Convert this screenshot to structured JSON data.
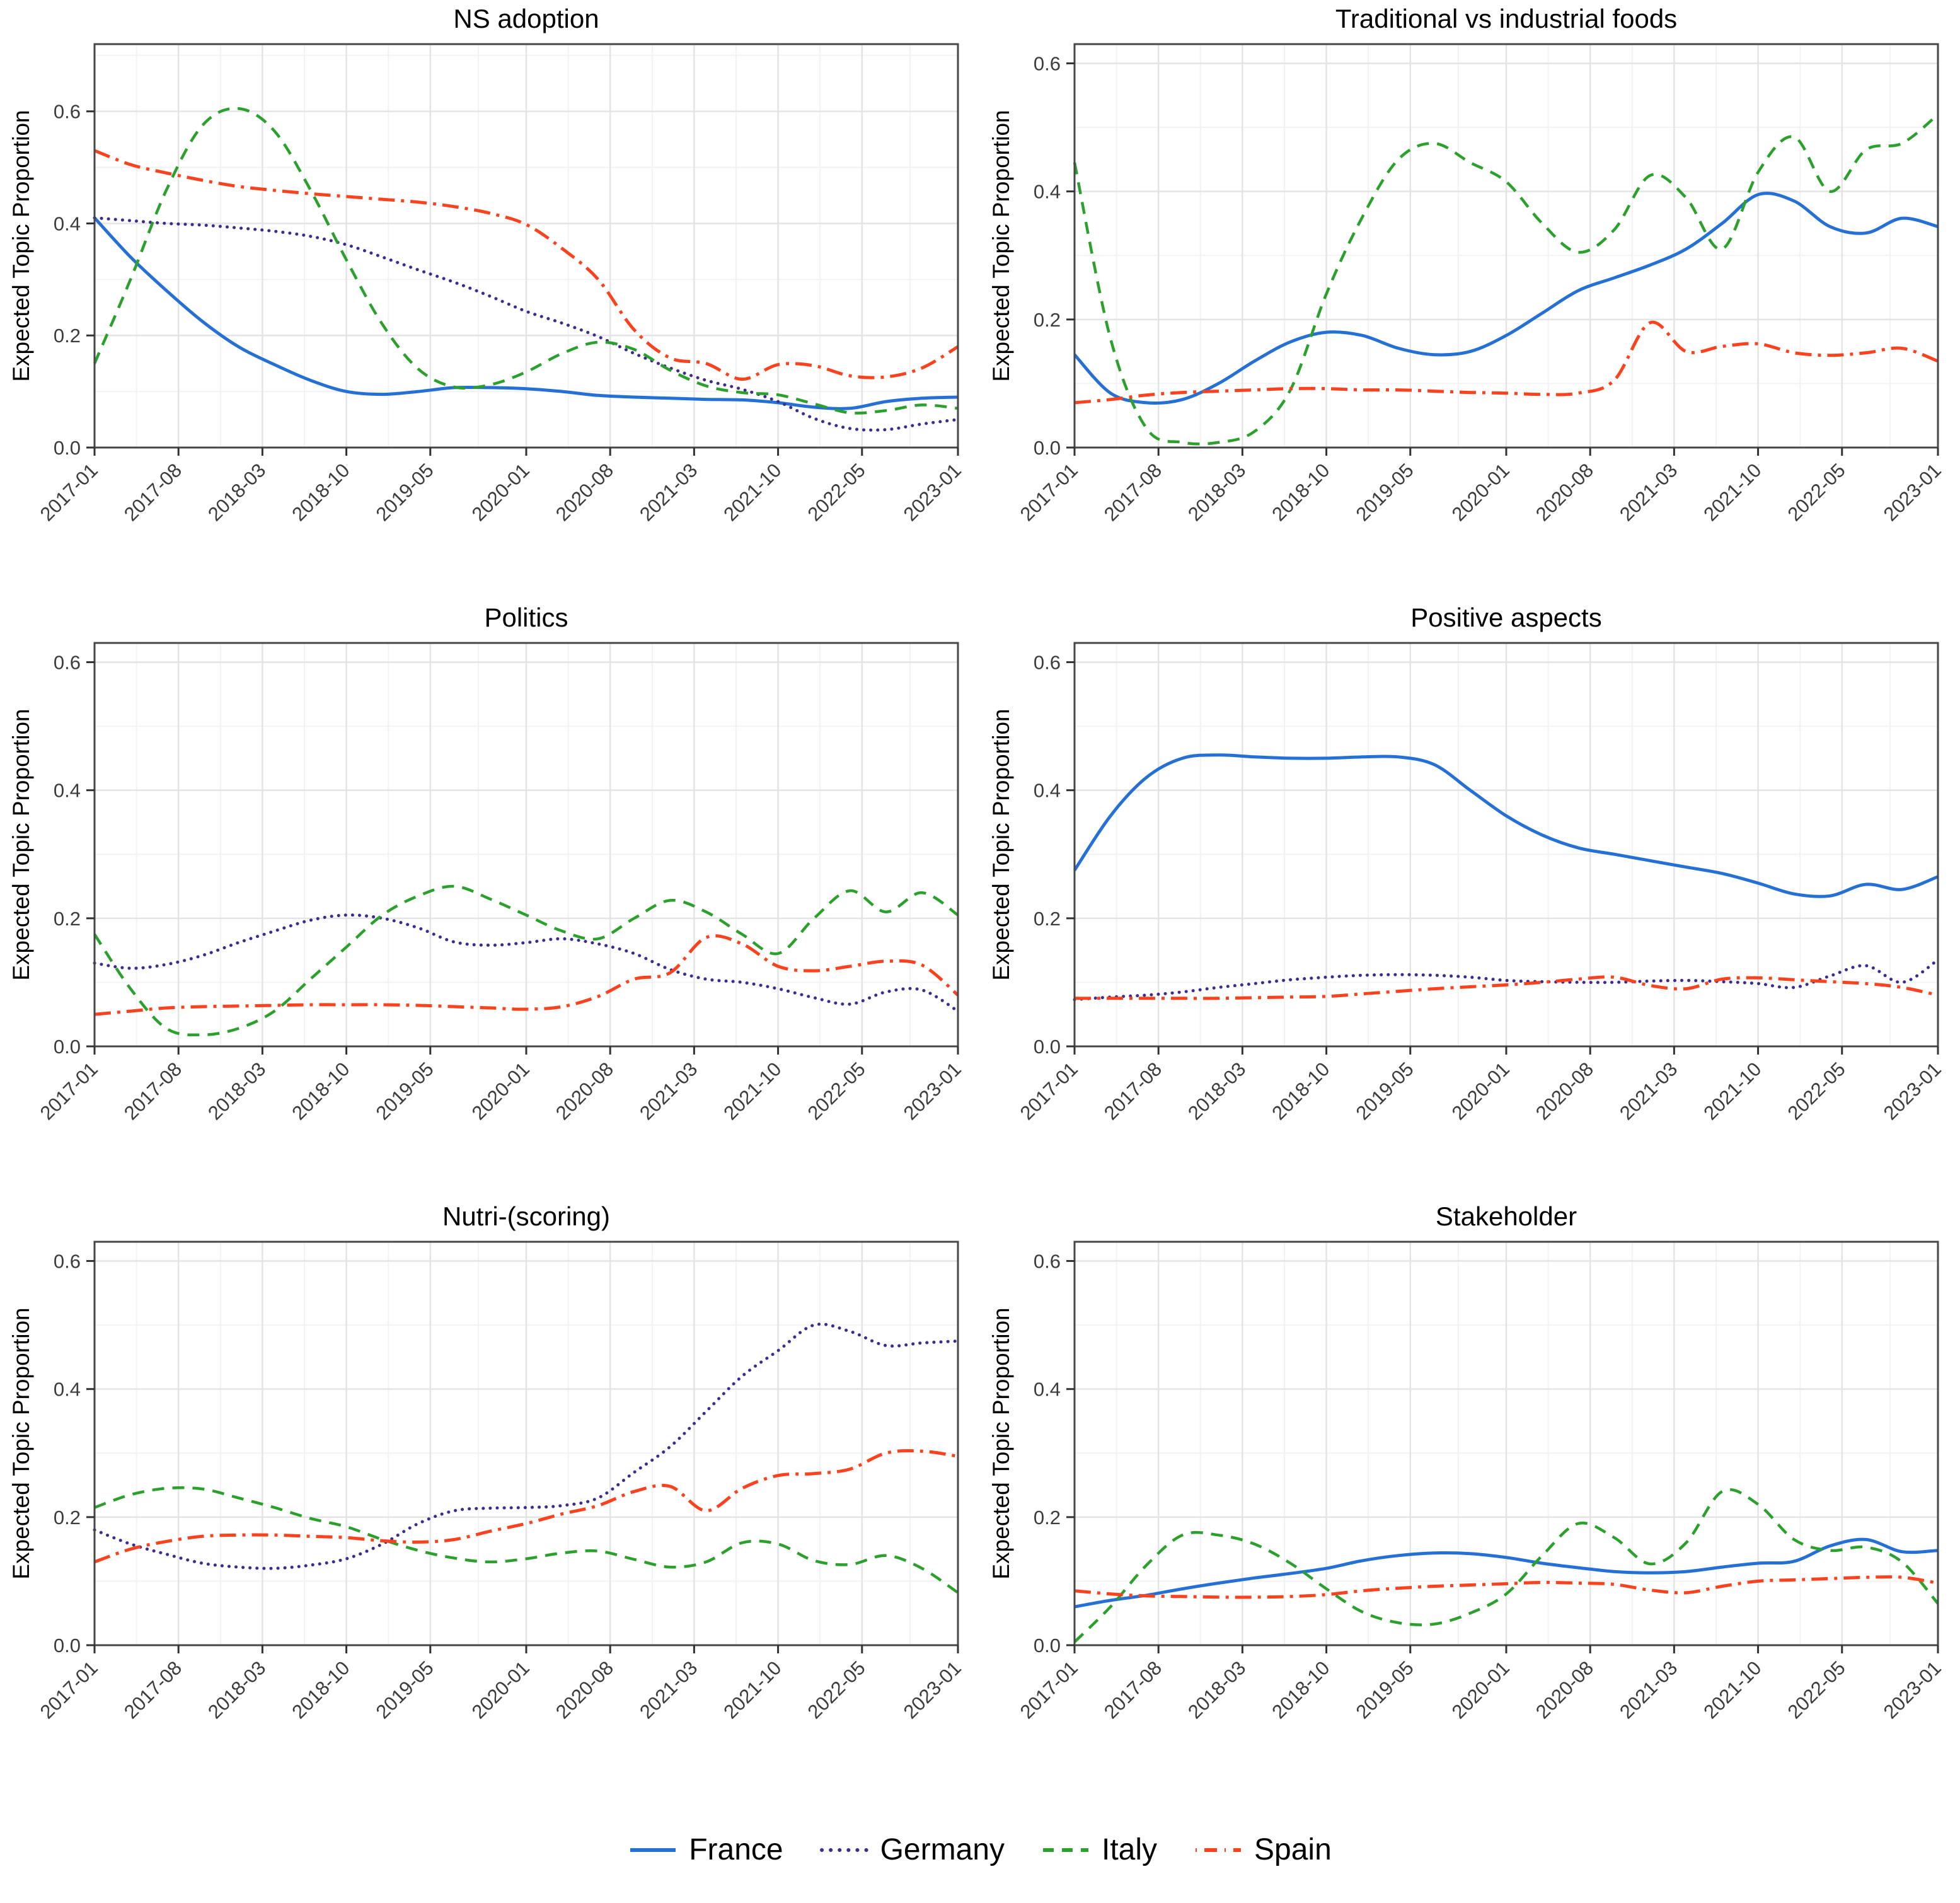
{
  "figure": {
    "ylabel": "Expected Topic Proportion",
    "y_tick_labels": [
      "0.0",
      "0.2",
      "0.4",
      "0.6"
    ]
  },
  "legend": {
    "items": [
      {
        "label": "France",
        "color": "#2570D4",
        "dash": "solid"
      },
      {
        "label": "Germany",
        "color": "#3D2B8F",
        "dash": "dotted"
      },
      {
        "label": "Italy",
        "color": "#2CA02C",
        "dash": "dashed"
      },
      {
        "label": "Spain",
        "color": "#FA431E",
        "dash": "dashdot"
      }
    ]
  },
  "x_tick_labels": [
    "2017-01",
    "2017-08",
    "2018-03",
    "2018-10",
    "2019-05",
    "2020-01",
    "2020-08",
    "2021-03",
    "2021-10",
    "2022-05",
    "2023-01"
  ],
  "x_tick_offsets": [
    0,
    7,
    14,
    21,
    28,
    36,
    43,
    50,
    57,
    64,
    72
  ],
  "x_offsets": [
    0,
    3,
    6,
    9,
    12,
    15,
    18,
    21,
    24,
    27,
    30,
    33,
    36,
    39,
    42,
    45,
    48,
    51,
    54,
    57,
    60,
    63,
    66,
    69,
    72
  ],
  "x_offset_months": [
    "2017-01",
    "2017-04",
    "2017-07",
    "2017-10",
    "2018-01",
    "2018-04",
    "2018-07",
    "2018-10",
    "2019-01",
    "2019-04",
    "2019-07",
    "2019-10",
    "2020-01",
    "2020-04",
    "2020-07",
    "2020-10",
    "2021-01",
    "2021-04",
    "2021-07",
    "2021-10",
    "2022-01",
    "2022-04",
    "2022-07",
    "2022-10",
    "2023-01"
  ],
  "chart_data": [
    {
      "type": "line",
      "title": "NS adoption",
      "xlabel": "",
      "ylabel": "Expected Topic Proportion",
      "ylim": [
        0,
        0.72
      ],
      "yticks": [
        0,
        0.2,
        0.4,
        0.6
      ],
      "grid": true,
      "series": [
        {
          "name": "France",
          "values": [
            0.41,
            0.34,
            0.28,
            0.225,
            0.18,
            0.148,
            0.12,
            0.1,
            0.095,
            0.1,
            0.107,
            0.107,
            0.105,
            0.1,
            0.093,
            0.09,
            0.088,
            0.086,
            0.085,
            0.08,
            0.072,
            0.07,
            0.082,
            0.088,
            0.09
          ]
        },
        {
          "name": "Germany",
          "values": [
            0.41,
            0.405,
            0.4,
            0.397,
            0.392,
            0.386,
            0.377,
            0.362,
            0.34,
            0.317,
            0.295,
            0.27,
            0.243,
            0.222,
            0.198,
            0.168,
            0.142,
            0.12,
            0.104,
            0.082,
            0.052,
            0.034,
            0.032,
            0.042,
            0.05
          ]
        },
        {
          "name": "Italy",
          "values": [
            0.15,
            0.3,
            0.46,
            0.575,
            0.605,
            0.565,
            0.46,
            0.335,
            0.22,
            0.14,
            0.108,
            0.112,
            0.135,
            0.168,
            0.188,
            0.175,
            0.138,
            0.11,
            0.098,
            0.094,
            0.078,
            0.062,
            0.066,
            0.076,
            0.07
          ]
        },
        {
          "name": "Spain",
          "values": [
            0.53,
            0.505,
            0.49,
            0.477,
            0.466,
            0.459,
            0.453,
            0.448,
            0.443,
            0.438,
            0.43,
            0.418,
            0.398,
            0.355,
            0.3,
            0.21,
            0.16,
            0.15,
            0.122,
            0.148,
            0.146,
            0.128,
            0.126,
            0.142,
            0.18
          ]
        }
      ]
    },
    {
      "type": "line",
      "title": "Traditional vs industrial foods",
      "xlabel": "",
      "ylabel": "Expected Topic Proportion",
      "ylim": [
        0,
        0.63
      ],
      "yticks": [
        0,
        0.2,
        0.4,
        0.6
      ],
      "grid": true,
      "series": [
        {
          "name": "France",
          "values": [
            0.145,
            0.085,
            0.07,
            0.075,
            0.1,
            0.135,
            0.165,
            0.18,
            0.175,
            0.155,
            0.145,
            0.15,
            0.175,
            0.21,
            0.245,
            0.265,
            0.285,
            0.31,
            0.35,
            0.395,
            0.385,
            0.345,
            0.335,
            0.358,
            0.345
          ]
        },
        {
          "name": "Italy",
          "values": [
            0.445,
            0.17,
            0.03,
            0.008,
            0.008,
            0.025,
            0.09,
            0.24,
            0.36,
            0.45,
            0.475,
            0.445,
            0.415,
            0.35,
            0.305,
            0.34,
            0.425,
            0.39,
            0.31,
            0.43,
            0.485,
            0.4,
            0.465,
            0.475,
            0.52
          ]
        },
        {
          "name": "Spain",
          "values": [
            0.07,
            0.075,
            0.082,
            0.086,
            0.088,
            0.09,
            0.092,
            0.092,
            0.09,
            0.09,
            0.088,
            0.086,
            0.085,
            0.083,
            0.085,
            0.105,
            0.195,
            0.15,
            0.158,
            0.162,
            0.148,
            0.144,
            0.148,
            0.155,
            0.135
          ]
        }
      ]
    },
    {
      "type": "line",
      "title": "Politics",
      "xlabel": "",
      "ylabel": "Expected Topic Proportion",
      "ylim": [
        0,
        0.63
      ],
      "yticks": [
        0,
        0.2,
        0.4,
        0.6
      ],
      "grid": true,
      "series": [
        {
          "name": "Germany",
          "values": [
            0.13,
            0.122,
            0.128,
            0.142,
            0.162,
            0.18,
            0.197,
            0.205,
            0.2,
            0.185,
            0.163,
            0.158,
            0.162,
            0.168,
            0.16,
            0.145,
            0.12,
            0.105,
            0.1,
            0.09,
            0.076,
            0.066,
            0.085,
            0.088,
            0.055
          ]
        },
        {
          "name": "Italy",
          "values": [
            0.175,
            0.09,
            0.028,
            0.018,
            0.028,
            0.055,
            0.105,
            0.155,
            0.205,
            0.235,
            0.25,
            0.23,
            0.205,
            0.18,
            0.168,
            0.2,
            0.228,
            0.21,
            0.175,
            0.145,
            0.2,
            0.243,
            0.21,
            0.24,
            0.205
          ]
        },
        {
          "name": "Spain",
          "values": [
            0.05,
            0.055,
            0.06,
            0.062,
            0.063,
            0.064,
            0.065,
            0.065,
            0.065,
            0.064,
            0.062,
            0.06,
            0.058,
            0.062,
            0.078,
            0.105,
            0.115,
            0.17,
            0.16,
            0.125,
            0.118,
            0.125,
            0.133,
            0.127,
            0.08
          ]
        }
      ]
    },
    {
      "type": "line",
      "title": "Positive aspects",
      "xlabel": "",
      "ylabel": "Expected Topic Proportion",
      "ylim": [
        0,
        0.63
      ],
      "yticks": [
        0,
        0.2,
        0.4,
        0.6
      ],
      "grid": true,
      "series": [
        {
          "name": "France",
          "values": [
            0.275,
            0.36,
            0.42,
            0.45,
            0.455,
            0.452,
            0.45,
            0.45,
            0.452,
            0.452,
            0.44,
            0.4,
            0.36,
            0.33,
            0.31,
            0.3,
            0.29,
            0.28,
            0.27,
            0.255,
            0.238,
            0.235,
            0.253,
            0.245,
            0.265
          ]
        },
        {
          "name": "Germany",
          "values": [
            0.073,
            0.077,
            0.08,
            0.085,
            0.092,
            0.098,
            0.104,
            0.108,
            0.111,
            0.112,
            0.111,
            0.108,
            0.103,
            0.101,
            0.1,
            0.1,
            0.102,
            0.103,
            0.101,
            0.098,
            0.092,
            0.11,
            0.126,
            0.1,
            0.135
          ]
        },
        {
          "name": "Spain",
          "values": [
            0.075,
            0.075,
            0.075,
            0.075,
            0.075,
            0.076,
            0.077,
            0.078,
            0.082,
            0.086,
            0.09,
            0.093,
            0.096,
            0.1,
            0.105,
            0.108,
            0.095,
            0.09,
            0.105,
            0.107,
            0.104,
            0.101,
            0.098,
            0.092,
            0.08
          ]
        }
      ]
    },
    {
      "type": "line",
      "title": "Nutri-(scoring)",
      "xlabel": "",
      "ylabel": "Expected Topic Proportion",
      "ylim": [
        0,
        0.63
      ],
      "yticks": [
        0,
        0.2,
        0.4,
        0.6
      ],
      "grid": true,
      "series": [
        {
          "name": "Germany",
          "values": [
            0.18,
            0.158,
            0.142,
            0.128,
            0.122,
            0.12,
            0.125,
            0.135,
            0.158,
            0.19,
            0.21,
            0.214,
            0.215,
            0.218,
            0.23,
            0.27,
            0.31,
            0.365,
            0.42,
            0.46,
            0.5,
            0.49,
            0.468,
            0.472,
            0.475
          ]
        },
        {
          "name": "Italy",
          "values": [
            0.215,
            0.235,
            0.245,
            0.244,
            0.23,
            0.215,
            0.198,
            0.185,
            0.165,
            0.148,
            0.136,
            0.13,
            0.135,
            0.144,
            0.147,
            0.134,
            0.122,
            0.13,
            0.16,
            0.158,
            0.132,
            0.126,
            0.14,
            0.12,
            0.082
          ]
        },
        {
          "name": "Spain",
          "values": [
            0.13,
            0.15,
            0.162,
            0.17,
            0.172,
            0.172,
            0.17,
            0.168,
            0.163,
            0.161,
            0.165,
            0.178,
            0.19,
            0.205,
            0.218,
            0.24,
            0.248,
            0.21,
            0.245,
            0.265,
            0.268,
            0.275,
            0.3,
            0.303,
            0.295
          ]
        }
      ]
    },
    {
      "type": "line",
      "title": "Stakeholder",
      "xlabel": "",
      "ylabel": "Expected Topic Proportion",
      "ylim": [
        0,
        0.63
      ],
      "yticks": [
        0,
        0.2,
        0.4,
        0.6
      ],
      "grid": true,
      "series": [
        {
          "name": "France",
          "values": [
            0.06,
            0.07,
            0.078,
            0.088,
            0.097,
            0.105,
            0.112,
            0.12,
            0.132,
            0.14,
            0.144,
            0.143,
            0.137,
            0.128,
            0.121,
            0.115,
            0.113,
            0.115,
            0.122,
            0.128,
            0.131,
            0.155,
            0.165,
            0.146,
            0.148
          ]
        },
        {
          "name": "Italy",
          "values": [
            0.005,
            0.06,
            0.125,
            0.172,
            0.172,
            0.158,
            0.128,
            0.088,
            0.052,
            0.035,
            0.033,
            0.05,
            0.08,
            0.14,
            0.19,
            0.168,
            0.127,
            0.16,
            0.24,
            0.22,
            0.165,
            0.148,
            0.153,
            0.13,
            0.065
          ]
        },
        {
          "name": "Spain",
          "values": [
            0.085,
            0.08,
            0.077,
            0.076,
            0.075,
            0.075,
            0.076,
            0.079,
            0.085,
            0.089,
            0.092,
            0.094,
            0.096,
            0.098,
            0.097,
            0.095,
            0.086,
            0.082,
            0.092,
            0.1,
            0.102,
            0.104,
            0.106,
            0.106,
            0.097
          ]
        }
      ]
    }
  ]
}
